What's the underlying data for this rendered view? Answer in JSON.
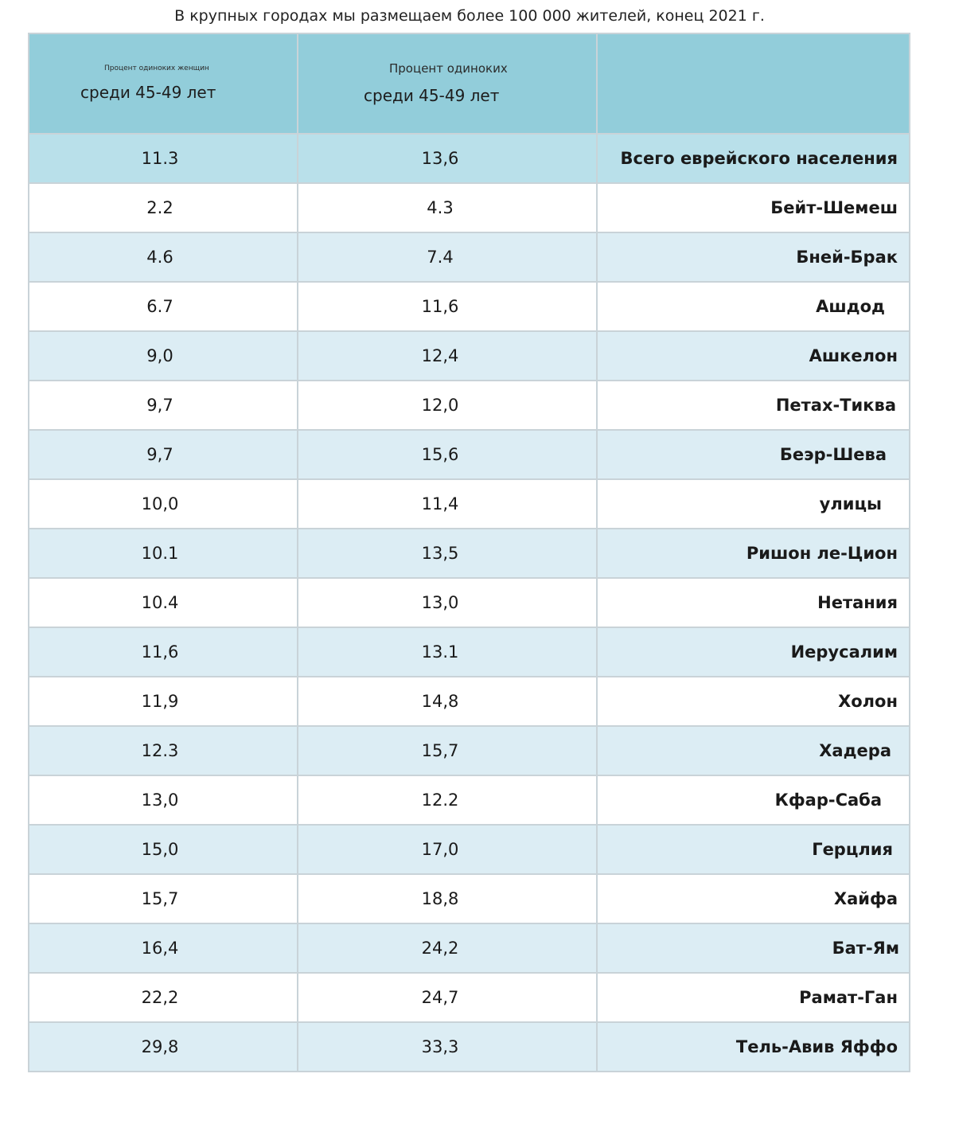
{
  "title": "В крупных городах мы размещаем более 100 000 жителей, конец 2021 г.",
  "headers": {
    "col1_small": "Процент одиноких женщин",
    "col1_big": "среди 45-49 лет",
    "col2_small": "Процент одиноких",
    "col2_big": "среди 45-49 лет",
    "col3": ""
  },
  "rows": [
    {
      "women": "11.3",
      "singles": "13,6",
      "city": "Всего еврейского населения"
    },
    {
      "women": "2.2",
      "singles": "4.3",
      "city": "Бейт-Шемеш"
    },
    {
      "women": "4.6",
      "singles": "7.4",
      "city": "Бней-Брак"
    },
    {
      "women": "6.7",
      "singles": "11,6",
      "city": "Ашдод"
    },
    {
      "women": "9,0",
      "singles": "12,4",
      "city": "Ашкелон"
    },
    {
      "women": "9,7",
      "singles": "12,0",
      "city": "Петах-Тиква"
    },
    {
      "women": "9,7",
      "singles": "15,6",
      "city": "Беэр-Шева"
    },
    {
      "women": "10,0",
      "singles": "11,4",
      "city": "улицы"
    },
    {
      "women": "10.1",
      "singles": "13,5",
      "city": "Ришон ле-Цион"
    },
    {
      "women": "10.4",
      "singles": "13,0",
      "city": "Нетания"
    },
    {
      "women": "11,6",
      "singles": "13.1",
      "city": "Иерусалим"
    },
    {
      "women": "11,9",
      "singles": "14,8",
      "city": "Холон"
    },
    {
      "women": "12.3",
      "singles": "15,7",
      "city": "Хадера"
    },
    {
      "women": "13,0",
      "singles": "12.2",
      "city": "Кфар-Саба"
    },
    {
      "women": "15,0",
      "singles": "17,0",
      "city": "Герцлия"
    },
    {
      "women": "15,7",
      "singles": "18,8",
      "city": "Хайфа"
    },
    {
      "women": "16,4",
      "singles": "24,2",
      "city": "Бат-Ям"
    },
    {
      "women": "22,2",
      "singles": "24,7",
      "city": "Рамат-Ган"
    },
    {
      "women": "29,8",
      "singles": "33,3",
      "city": "Тель-Авив Яффо"
    }
  ]
}
